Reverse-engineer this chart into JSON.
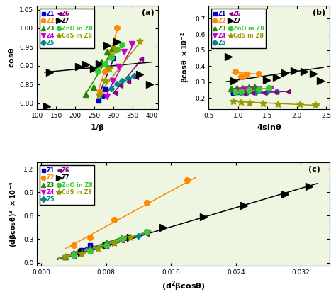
{
  "bg_color": "#eef5e0",
  "series": {
    "Z1": {
      "color": "#0000cc",
      "marker": "s",
      "ms": 4.5
    },
    "Z2": {
      "color": "#ff8800",
      "marker": "o",
      "ms": 5.5
    },
    "Z3": {
      "color": "#228800",
      "marker": "^",
      "ms": 5.5
    },
    "Z4": {
      "color": "#cc00cc",
      "marker": "v",
      "ms": 5.5
    },
    "Z5": {
      "color": "#008888",
      "marker": "D",
      "ms": 4.5
    },
    "Z6": {
      "color": "#880088",
      "marker": "<",
      "ms": 4.5
    },
    "Z7": {
      "color": "#000000",
      "marker": ">",
      "ms": 6.5
    },
    "ZnO": {
      "color": "#33cc33",
      "marker": "o",
      "ms": 5.5
    },
    "CdS": {
      "color": "#999900",
      "marker": "*",
      "ms": 7.5
    }
  },
  "legend_order": [
    "Z1",
    "Z2",
    "Z3",
    "Z4",
    "Z5",
    "Z6",
    "Z7",
    "ZnO",
    "CdS"
  ],
  "legend_labels": [
    "Z1",
    "Z2",
    "Z3",
    "Z4",
    "Z5",
    "Z6",
    "Z7",
    "ZnO in Z8",
    "CdS in Z8"
  ],
  "legend_text_colors": [
    "#0000cc",
    "#ff8800",
    "#228800",
    "#cc00cc",
    "#008888",
    "#880088",
    "#000000",
    "#33cc33",
    "#999900"
  ],
  "panel_a": {
    "xlim": [
      100,
      415
    ],
    "ylim": [
      0.785,
      1.06
    ],
    "xticks": [
      100,
      150,
      200,
      250,
      300,
      350,
      400
    ],
    "yticks": [
      0.8,
      0.85,
      0.9,
      0.95,
      1.0,
      1.05
    ],
    "Z1": {
      "x": [
        261,
        270,
        278,
        298
      ],
      "y": [
        0.808,
        0.82,
        0.837,
        0.92
      ]
    },
    "Z2": {
      "x": [
        264,
        278,
        292,
        308
      ],
      "y": [
        0.832,
        0.885,
        0.938,
        1.002
      ]
    },
    "Z3": {
      "x": [
        228,
        248,
        268,
        283,
        298
      ],
      "y": [
        0.824,
        0.843,
        0.912,
        0.938,
        0.948
      ]
    },
    "Z4": {
      "x": [
        283,
        298,
        312,
        328,
        348
      ],
      "y": [
        0.818,
        0.86,
        0.898,
        0.938,
        0.958
      ]
    },
    "Z5": {
      "x": [
        293,
        308,
        322,
        338,
        353
      ],
      "y": [
        0.84,
        0.852,
        0.86,
        0.868,
        0.873
      ]
    },
    "Z6": {
      "x": [
        303,
        318,
        338,
        358,
        372
      ],
      "y": [
        0.828,
        0.846,
        0.858,
        0.87,
        0.918
      ]
    },
    "Z7": {
      "x": [
        125,
        133,
        208,
        228,
        248,
        263,
        283,
        308,
        368,
        393
      ],
      "y": [
        0.793,
        0.883,
        0.898,
        0.903,
        0.893,
        0.905,
        0.955,
        0.965,
        0.878,
        0.85
      ]
    },
    "ZnO": {
      "x": [
        258,
        278,
        293,
        308,
        322
      ],
      "y": [
        0.886,
        0.906,
        0.923,
        0.943,
        0.956
      ]
    },
    "CdS": {
      "x": [
        263,
        278,
        288,
        303,
        368
      ],
      "y": [
        0.823,
        0.86,
        0.893,
        0.948,
        0.966
      ]
    },
    "fit_Z1": {
      "x": [
        255,
        302
      ],
      "y": [
        0.806,
        0.924
      ]
    },
    "fit_Z2": {
      "x": [
        258,
        312
      ],
      "y": [
        0.826,
        1.005
      ]
    },
    "fit_Z3": {
      "x": [
        223,
        302
      ],
      "y": [
        0.818,
        0.95
      ]
    },
    "fit_Z4": {
      "x": [
        278,
        353
      ],
      "y": [
        0.816,
        0.96
      ]
    },
    "fit_Z5": {
      "x": [
        288,
        358
      ],
      "y": [
        0.838,
        0.875
      ]
    },
    "fit_Z6": {
      "x": [
        298,
        378
      ],
      "y": [
        0.826,
        0.923
      ]
    },
    "fit_Z7": {
      "x": [
        120,
        400
      ],
      "y": [
        0.883,
        0.91
      ]
    },
    "fit_ZnO": {
      "x": [
        253,
        327
      ],
      "y": [
        0.883,
        0.958
      ]
    },
    "fit_CdS": {
      "x": [
        258,
        373
      ],
      "y": [
        0.821,
        0.968
      ]
    }
  },
  "panel_b": {
    "xlim": [
      0.5,
      2.55
    ],
    "ylim": [
      0.13,
      0.78
    ],
    "xticks": [
      0.5,
      1.0,
      1.5,
      2.0,
      2.5
    ],
    "yticks": [
      0.2,
      0.3,
      0.4,
      0.5,
      0.6,
      0.7
    ],
    "Z1": {
      "x": [
        0.92,
        0.98,
        1.05,
        1.12
      ],
      "y": [
        0.23,
        0.237,
        0.245,
        0.252
      ]
    },
    "Z2": {
      "x": [
        0.95,
        1.05,
        1.15,
        1.35
      ],
      "y": [
        0.365,
        0.335,
        0.348,
        0.352
      ]
    },
    "Z3": {
      "x": [
        0.88,
        0.98,
        1.08,
        1.18,
        1.28
      ],
      "y": [
        0.258,
        0.262,
        0.265,
        0.268,
        0.272
      ]
    },
    "Z4": {
      "x": [
        1.0,
        1.1,
        1.2,
        1.35,
        1.55
      ],
      "y": [
        0.245,
        0.248,
        0.252,
        0.255,
        0.26
      ]
    },
    "Z5": {
      "x": [
        1.05,
        1.15,
        1.3,
        1.48,
        1.65
      ],
      "y": [
        0.23,
        0.232,
        0.235,
        0.238,
        0.24
      ]
    },
    "Z6": {
      "x": [
        1.1,
        1.25,
        1.45,
        1.65,
        1.85
      ],
      "y": [
        0.228,
        0.23,
        0.233,
        0.237,
        0.24
      ]
    },
    "Z7": {
      "x": [
        0.83,
        0.93,
        1.48,
        1.65,
        1.8,
        1.95,
        2.12,
        2.28,
        2.4
      ],
      "y": [
        0.46,
        0.308,
        0.31,
        0.33,
        0.355,
        0.372,
        0.365,
        0.352,
        0.308
      ]
    },
    "ZnO": {
      "x": [
        0.95,
        1.05,
        1.18,
        1.35,
        1.52
      ],
      "y": [
        0.235,
        0.24,
        0.248,
        0.255,
        0.262
      ]
    },
    "CdS": {
      "x": [
        0.92,
        1.05,
        1.2,
        1.42,
        1.68,
        2.05,
        2.32
      ],
      "y": [
        0.178,
        0.172,
        0.168,
        0.165,
        0.162,
        0.158,
        0.155
      ]
    },
    "fit_Z1": {
      "x": [
        0.88,
        1.15
      ],
      "y": [
        0.228,
        0.254
      ]
    },
    "fit_Z2": {
      "x": [
        0.9,
        1.4
      ],
      "y": [
        0.362,
        0.348
      ]
    },
    "fit_Z3": {
      "x": [
        0.85,
        1.32
      ],
      "y": [
        0.256,
        0.274
      ]
    },
    "fit_Z4": {
      "x": [
        0.97,
        1.6
      ],
      "y": [
        0.244,
        0.262
      ]
    },
    "fit_Z5": {
      "x": [
        1.02,
        1.68
      ],
      "y": [
        0.229,
        0.241
      ]
    },
    "fit_Z6": {
      "x": [
        1.07,
        1.9
      ],
      "y": [
        0.227,
        0.242
      ]
    },
    "fit_Z7": {
      "x": [
        0.8,
        2.45
      ],
      "y": [
        0.302,
        0.392
      ]
    },
    "fit_ZnO": {
      "x": [
        0.92,
        1.55
      ],
      "y": [
        0.233,
        0.264
      ]
    },
    "fit_CdS": {
      "x": [
        0.88,
        2.38
      ],
      "y": [
        0.179,
        0.152
      ]
    }
  },
  "panel_c": {
    "xlim": [
      -0.0005,
      0.0355
    ],
    "ylim": [
      -0.04,
      1.28
    ],
    "xticks": [
      0.0,
      0.008,
      0.016,
      0.024,
      0.032
    ],
    "yticks": [
      0.0,
      0.3,
      0.6,
      0.9,
      1.2
    ],
    "Z1": {
      "x": [
        0.003,
        0.004,
        0.005,
        0.006
      ],
      "y": [
        0.072,
        0.112,
        0.158,
        0.218
      ]
    },
    "Z2": {
      "x": [
        0.004,
        0.006,
        0.009,
        0.013,
        0.018
      ],
      "y": [
        0.222,
        0.318,
        0.545,
        0.765,
        1.055
      ]
    },
    "Z3": {
      "x": [
        0.003,
        0.004,
        0.006,
        0.008,
        0.01
      ],
      "y": [
        0.078,
        0.122,
        0.188,
        0.255,
        0.325
      ]
    },
    "Z4": {
      "x": [
        0.004,
        0.006,
        0.008,
        0.01,
        0.013
      ],
      "y": [
        0.092,
        0.15,
        0.22,
        0.298,
        0.388
      ]
    },
    "Z5": {
      "x": [
        0.004,
        0.005,
        0.007,
        0.009,
        0.012
      ],
      "y": [
        0.082,
        0.128,
        0.195,
        0.262,
        0.342
      ]
    },
    "Z6": {
      "x": [
        0.004,
        0.006,
        0.008,
        0.01,
        0.013
      ],
      "y": [
        0.088,
        0.14,
        0.208,
        0.282,
        0.368
      ]
    },
    "Z7": {
      "x": [
        0.005,
        0.008,
        0.011,
        0.015,
        0.02,
        0.025,
        0.03,
        0.033
      ],
      "y": [
        0.132,
        0.22,
        0.325,
        0.452,
        0.585,
        0.732,
        0.875,
        0.972
      ]
    },
    "ZnO": {
      "x": [
        0.004,
        0.006,
        0.008,
        0.01,
        0.013
      ],
      "y": [
        0.094,
        0.15,
        0.222,
        0.3,
        0.392
      ]
    },
    "CdS": {
      "x": [
        0.003,
        0.005,
        0.007,
        0.009,
        0.011
      ],
      "y": [
        0.074,
        0.118,
        0.18,
        0.248,
        0.32
      ]
    },
    "fit_Z1": {
      "x": [
        0.002,
        0.0065
      ],
      "y": [
        0.038,
        0.228
      ]
    },
    "fit_Z2": {
      "x": [
        0.003,
        0.019
      ],
      "y": [
        0.178,
        1.088
      ]
    },
    "fit_Z3": {
      "x": [
        0.002,
        0.0105
      ],
      "y": [
        0.052,
        0.338
      ]
    },
    "fit_Z4": {
      "x": [
        0.003,
        0.0135
      ],
      "y": [
        0.07,
        0.402
      ]
    },
    "fit_Z5": {
      "x": [
        0.003,
        0.0125
      ],
      "y": [
        0.062,
        0.358
      ]
    },
    "fit_Z6": {
      "x": [
        0.003,
        0.0135
      ],
      "y": [
        0.065,
        0.382
      ]
    },
    "fit_Z7": {
      "x": [
        0.004,
        0.034
      ],
      "y": [
        0.088,
        1.012
      ]
    },
    "fit_ZnO": {
      "x": [
        0.003,
        0.0135
      ],
      "y": [
        0.072,
        0.408
      ]
    },
    "fit_CdS": {
      "x": [
        0.002,
        0.0115
      ],
      "y": [
        0.05,
        0.33
      ]
    }
  }
}
